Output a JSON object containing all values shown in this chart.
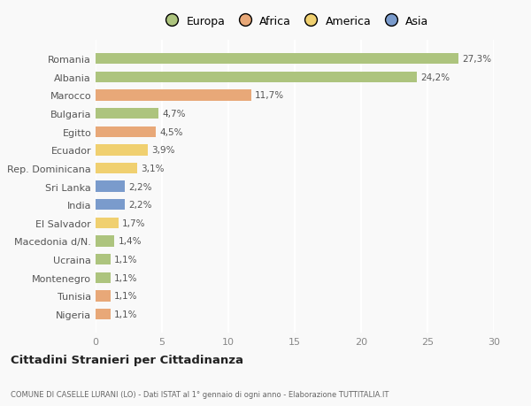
{
  "countries": [
    "Nigeria",
    "Tunisia",
    "Montenegro",
    "Ucraina",
    "Macedonia d/N.",
    "El Salvador",
    "India",
    "Sri Lanka",
    "Rep. Dominicana",
    "Ecuador",
    "Egitto",
    "Bulgaria",
    "Marocco",
    "Albania",
    "Romania"
  ],
  "values": [
    1.1,
    1.1,
    1.1,
    1.1,
    1.4,
    1.7,
    2.2,
    2.2,
    3.1,
    3.9,
    4.5,
    4.7,
    11.7,
    24.2,
    27.3
  ],
  "labels": [
    "1,1%",
    "1,1%",
    "1,1%",
    "1,1%",
    "1,4%",
    "1,7%",
    "2,2%",
    "2,2%",
    "3,1%",
    "3,9%",
    "4,5%",
    "4,7%",
    "11,7%",
    "24,2%",
    "27,3%"
  ],
  "continents": [
    "Africa",
    "Africa",
    "Europa",
    "Europa",
    "Europa",
    "America",
    "Asia",
    "Asia",
    "America",
    "America",
    "Africa",
    "Europa",
    "Africa",
    "Europa",
    "Europa"
  ],
  "colors": {
    "Europa": "#adc47e",
    "Africa": "#e8a878",
    "America": "#f0d070",
    "Asia": "#7a9bcc"
  },
  "legend_labels": [
    "Europa",
    "Africa",
    "America",
    "Asia"
  ],
  "legend_colors": [
    "#adc47e",
    "#e8a878",
    "#f0d070",
    "#7a9bcc"
  ],
  "title": "Cittadini Stranieri per Cittadinanza",
  "subtitle": "COMUNE DI CASELLE LURANI (LO) - Dati ISTAT al 1° gennaio di ogni anno - Elaborazione TUTTITALIA.IT",
  "xlim": [
    0,
    30
  ],
  "xticks": [
    0,
    5,
    10,
    15,
    20,
    25,
    30
  ],
  "background_color": "#f9f9f9",
  "grid_color": "#ffffff",
  "bar_height": 0.6
}
